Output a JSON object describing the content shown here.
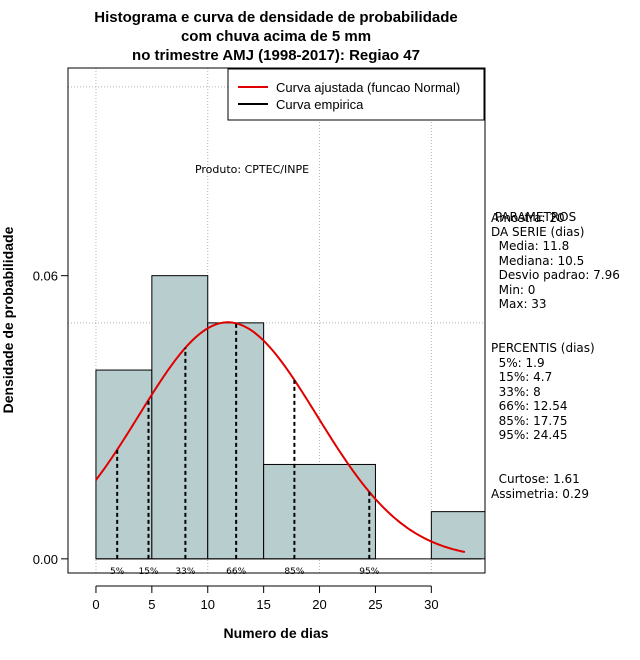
{
  "chart_data": {
    "type": "bar",
    "title_lines": [
      "Histograma e curva de densidade de probabilidade",
      "com chuva acima de 5 mm",
      "no trimestre AMJ (1998-2017): Regiao 47"
    ],
    "xlabel": "Numero de dias",
    "ylabel": "Densidade de probabilidade",
    "xlim": [
      -2.5,
      34.8
    ],
    "ylim": [
      -0.003,
      0.104
    ],
    "x_ticks": [
      0,
      5,
      10,
      15,
      20,
      25,
      30
    ],
    "y_ticks": [
      {
        "value": 0.0,
        "label": "0.00"
      },
      {
        "value": 0.06,
        "label": "0.06"
      }
    ],
    "grid": true,
    "grid_x": [
      0,
      10,
      20,
      30
    ],
    "grid_y": [
      0.05,
      0.1
    ],
    "bins": [
      {
        "start": 0,
        "end": 5,
        "density": 0.04
      },
      {
        "start": 5,
        "end": 10,
        "density": 0.06
      },
      {
        "start": 10,
        "end": 15,
        "density": 0.05
      },
      {
        "start": 15,
        "end": 25,
        "density": 0.02
      },
      {
        "start": 30,
        "end": 35,
        "density": 0.01
      }
    ],
    "bar_color": "#b8cece",
    "normal_curve": {
      "mean": 11.8,
      "sd": 7.96,
      "x_from": 0,
      "x_to": 33,
      "color": "#e00000"
    },
    "percentile_lines": [
      {
        "label": "5%",
        "x": 1.9
      },
      {
        "label": "15%",
        "x": 4.7
      },
      {
        "label": "33%",
        "x": 8
      },
      {
        "label": "66%",
        "x": 12.54
      },
      {
        "label": "85%",
        "x": 17.75
      },
      {
        "label": "95%",
        "x": 24.45
      }
    ],
    "legend": {
      "position": "top-right",
      "entries": [
        {
          "label": "Curva ajustada (funcao Normal)",
          "color": "#e00000"
        },
        {
          "label": "Curva empirica",
          "color": "#000000"
        }
      ]
    },
    "annotation": "Produto: CPTEC/INPE"
  },
  "stats_panel": {
    "amostra": "Amostra: 20",
    "param_lines": [
      " PARAMETROS",
      "DA SERIE (dias)",
      "  Media: 11.8",
      "  Mediana: 10.5",
      "  Desvio padrao: 7.96",
      "  Min: 0",
      "  Max: 33"
    ],
    "percentil_lines": [
      "PERCENTIS (dias)",
      "  5%: 1.9",
      "  15%: 4.7",
      "  33%: 8",
      "  66%: 12.54",
      "  85%: 17.75",
      "  95%: 24.45"
    ],
    "shape_lines": [
      "  Curtose: 1.61",
      "Assimetria: 0.29"
    ]
  }
}
